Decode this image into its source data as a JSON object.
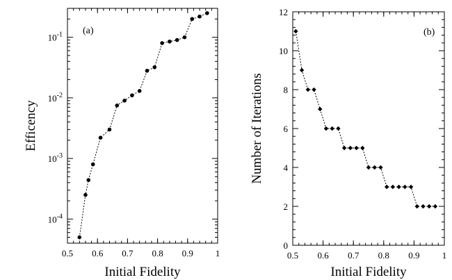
{
  "chart_data": [
    {
      "type": "scatter",
      "panel_label": "(a)",
      "xlabel": "Initial Fidelity",
      "ylabel": "Efficency",
      "xlim": [
        0.5,
        1.0
      ],
      "xticks": [
        0.5,
        0.6,
        0.7,
        0.8,
        0.9,
        1.0
      ],
      "xtick_labels": [
        "0.5",
        "0.6",
        "0.7",
        "0.8",
        "0.9",
        "1"
      ],
      "yscale": "log",
      "ylim": [
        4e-05,
        0.3
      ],
      "yticks": [
        0.0001,
        0.001,
        0.01,
        0.1
      ],
      "ytick_labels": [
        "10-4",
        "10-3",
        "10-2",
        "10-1"
      ],
      "x": [
        0.54,
        0.56,
        0.57,
        0.585,
        0.61,
        0.64,
        0.665,
        0.69,
        0.715,
        0.74,
        0.765,
        0.79,
        0.815,
        0.84,
        0.865,
        0.89,
        0.915,
        0.94,
        0.965
      ],
      "y": [
        5e-05,
        0.00025,
        0.00044,
        0.0008,
        0.0022,
        0.003,
        0.0075,
        0.009,
        0.011,
        0.013,
        0.028,
        0.032,
        0.08,
        0.085,
        0.09,
        0.1,
        0.2,
        0.22,
        0.25
      ]
    },
    {
      "type": "scatter",
      "panel_label": "(b)",
      "xlabel": "Initial Fidelity",
      "ylabel": "Number of Iterations",
      "xlim": [
        0.5,
        1.0
      ],
      "xticks": [
        0.5,
        0.6,
        0.7,
        0.8,
        0.9,
        1.0
      ],
      "xtick_labels": [
        "0.5",
        "0.6",
        "0.7",
        "0.8",
        "0.9",
        "1"
      ],
      "yscale": "linear",
      "ylim": [
        0,
        12
      ],
      "yticks": [
        0,
        2,
        4,
        6,
        8,
        10,
        12
      ],
      "ytick_labels": [
        "0",
        "2",
        "4",
        "6",
        "8",
        "10",
        "12"
      ],
      "x": [
        0.51,
        0.53,
        0.55,
        0.57,
        0.59,
        0.61,
        0.63,
        0.65,
        0.67,
        0.69,
        0.71,
        0.73,
        0.75,
        0.77,
        0.79,
        0.81,
        0.83,
        0.85,
        0.87,
        0.89,
        0.91,
        0.93,
        0.95,
        0.97
      ],
      "y": [
        11,
        9,
        8,
        8,
        7,
        6,
        6,
        6,
        5,
        5,
        5,
        5,
        4,
        4,
        4,
        3,
        3,
        3,
        3,
        3,
        2,
        2,
        2,
        2
      ]
    }
  ]
}
